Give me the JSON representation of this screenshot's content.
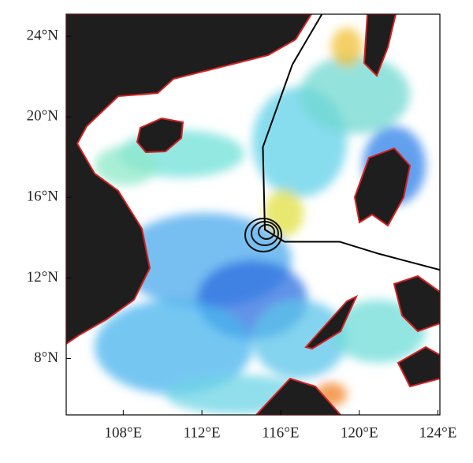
{
  "chart_data": {
    "type": "map",
    "xlim": [
      105.1,
      124.1
    ],
    "ylim": [
      5.2,
      25.1
    ],
    "xticks": [
      {
        "value": 108,
        "label": "108°E"
      },
      {
        "value": 112,
        "label": "112°E"
      },
      {
        "value": 116,
        "label": "116°E"
      },
      {
        "value": 120,
        "label": "120°E"
      },
      {
        "value": 124,
        "label": "124°E"
      }
    ],
    "yticks": [
      {
        "value": 8,
        "label": "8°N"
      },
      {
        "value": 12,
        "label": "12°N"
      },
      {
        "value": 16,
        "label": "16°N"
      },
      {
        "value": 20,
        "label": "20°N"
      },
      {
        "value": 24,
        "label": "24°N"
      }
    ],
    "series": [
      {
        "color": "#000000",
        "x": [
          118.1,
          116.6,
          115.1,
          115.2,
          116.2,
          119.0,
          121.0,
          124.1
        ],
        "y": [
          25.1,
          22.6,
          18.5,
          14.4,
          13.8,
          13.8,
          13.2,
          12.4
        ]
      }
    ]
  }
}
